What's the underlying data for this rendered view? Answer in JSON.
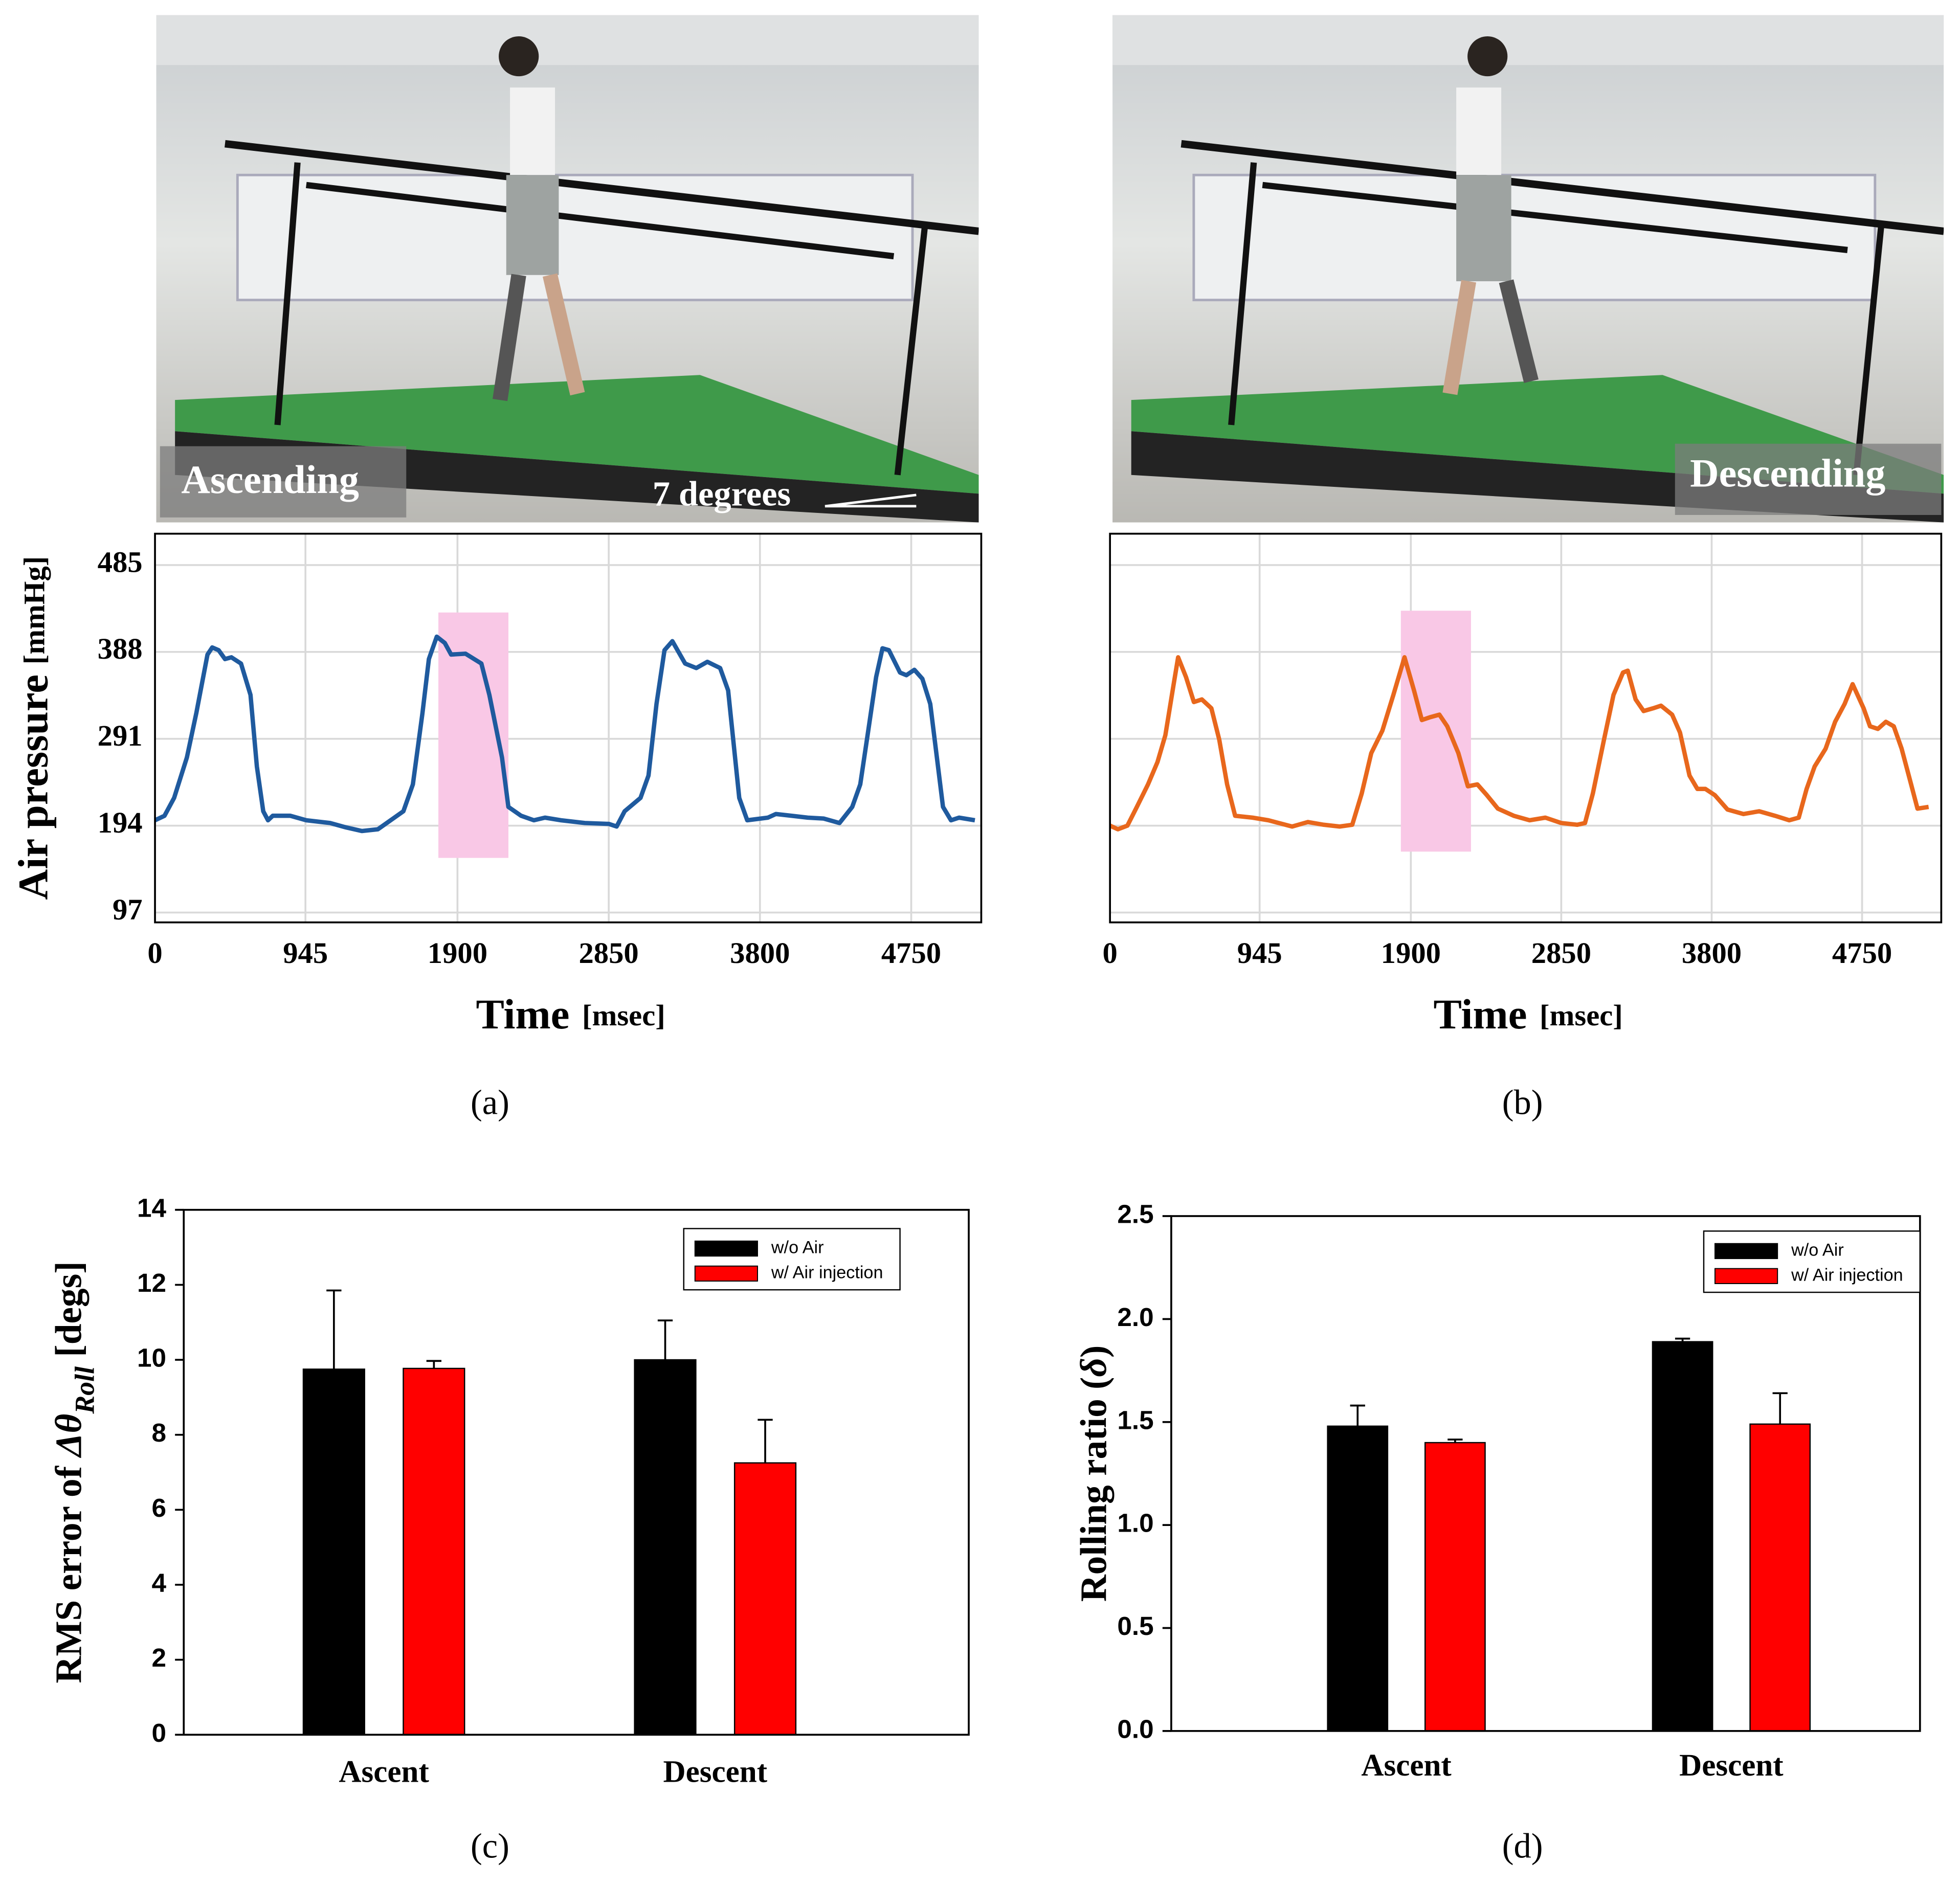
{
  "photos": [
    {
      "label": "Ascending",
      "annotation": "7 degrees"
    },
    {
      "label": "Descending"
    }
  ],
  "panel_labels": [
    "(a)",
    "(b)",
    "(c)",
    "(d)"
  ],
  "chart_data": [
    {
      "type": "line",
      "x_label": "Time",
      "x_unit": "[msec]",
      "y_label": "Air pressure",
      "y_unit": "[mmHg]",
      "x": [
        0,
        60,
        120,
        200,
        260,
        330,
        360,
        400,
        440,
        480,
        540,
        600,
        640,
        680,
        710,
        740,
        850,
        950,
        1100,
        1200,
        1300,
        1400,
        1480,
        1560,
        1620,
        1680,
        1720,
        1770,
        1820,
        1860,
        1950,
        2050,
        2100,
        2180,
        2220,
        2300,
        2380,
        2450,
        2550,
        2700,
        2850,
        2900,
        2950,
        3050,
        3100,
        3150,
        3200,
        3250,
        3330,
        3400,
        3470,
        3550,
        3600,
        3670,
        3720,
        3850,
        3900,
        4000,
        4100,
        4200,
        4300,
        4380,
        4430,
        4480,
        4530,
        4570,
        4610,
        4680,
        4720,
        4770,
        4820,
        4870,
        4950,
        5000,
        5050,
        5150
      ],
      "series": [
        {
          "color": "#1f5a9e",
          "values": [
            200,
            205,
            225,
            270,
            320,
            385,
            393,
            390,
            380,
            382,
            375,
            340,
            260,
            210,
            200,
            205,
            205,
            200,
            197,
            192,
            188,
            190,
            200,
            210,
            240,
            320,
            380,
            405,
            398,
            385,
            386,
            375,
            340,
            270,
            215,
            205,
            200,
            203,
            200,
            197,
            196,
            193,
            210,
            225,
            250,
            330,
            390,
            400,
            375,
            370,
            377,
            370,
            345,
            225,
            200,
            203,
            207,
            205,
            203,
            202,
            197,
            215,
            240,
            300,
            360,
            392,
            390,
            365,
            362,
            368,
            358,
            330,
            215,
            200,
            203,
            200
          ]
        }
      ],
      "xlim": [
        0,
        5190
      ],
      "ylim": [
        86,
        520
      ],
      "xticks": [
        0,
        945,
        1900,
        2850,
        3800,
        4750
      ],
      "yticks": [
        97,
        194,
        291,
        388,
        485
      ],
      "grid": true,
      "highlight": {
        "x": [
          1780,
          2220
        ],
        "y": [
          158,
          432
        ],
        "color": "#f9c8e6"
      }
    },
    {
      "type": "line",
      "x": [
        0,
        50,
        110,
        170,
        240,
        300,
        350,
        400,
        430,
        480,
        530,
        580,
        640,
        690,
        740,
        790,
        900,
        1000,
        1150,
        1250,
        1350,
        1450,
        1530,
        1590,
        1650,
        1720,
        1790,
        1860,
        1920,
        1970,
        2020,
        2080,
        2130,
        2200,
        2260,
        2320,
        2380,
        2450,
        2550,
        2650,
        2750,
        2850,
        2950,
        3000,
        3050,
        3120,
        3180,
        3240,
        3270,
        3320,
        3370,
        3430,
        3480,
        3550,
        3600,
        3660,
        3710,
        3760,
        3820,
        3900,
        4000,
        4100,
        4200,
        4290,
        4350,
        4400,
        4450,
        4520,
        4580,
        4640,
        4690,
        4760,
        4800,
        4850,
        4900,
        4950,
        5000,
        5060,
        5100,
        5170
      ],
      "series": [
        {
          "color": "#e8671c",
          "values": [
            194,
            190,
            194,
            215,
            240,
            265,
            295,
            350,
            382,
            360,
            332,
            335,
            325,
            290,
            240,
            205,
            203,
            200,
            193,
            198,
            195,
            193,
            195,
            230,
            275,
            300,
            340,
            382,
            345,
            312,
            315,
            318,
            305,
            275,
            238,
            240,
            228,
            213,
            205,
            200,
            203,
            197,
            195,
            197,
            230,
            290,
            340,
            365,
            367,
            335,
            322,
            325,
            328,
            318,
            298,
            250,
            235,
            235,
            228,
            212,
            207,
            210,
            205,
            200,
            203,
            235,
            260,
            280,
            310,
            330,
            352,
            325,
            305,
            302,
            310,
            305,
            280,
            240,
            213,
            215
          ]
        }
      ],
      "xlim": [
        0,
        5250
      ],
      "ylim": [
        86,
        520
      ],
      "xticks": [
        0,
        945,
        1900,
        2850,
        3800,
        4750
      ],
      "ygrid": [
        97,
        194,
        291,
        388,
        485
      ],
      "grid": true,
      "x_label": "Time",
      "x_unit": "[msec]",
      "highlight": {
        "x": [
          1837,
          2280
        ],
        "y": [
          165,
          434
        ],
        "color": "#f9c8e6"
      }
    },
    {
      "type": "bar",
      "categories": [
        "Ascent",
        "Descent"
      ],
      "y_label_parts": [
        "RMS error of ",
        "Δθ",
        "Roll",
        " [degs]"
      ],
      "series": [
        {
          "name": "w/o Air",
          "color": "#000000",
          "values": [
            9.75,
            10.0
          ],
          "errors": [
            2.1,
            1.05
          ]
        },
        {
          "name": "w/ Air injection",
          "color": "#ff0000",
          "values": [
            9.77,
            7.25
          ],
          "errors": [
            0.2,
            1.15
          ]
        }
      ],
      "ylim": [
        0,
        14
      ],
      "yticks": [
        0,
        2,
        4,
        6,
        8,
        10,
        12,
        14
      ],
      "legend": "upper right"
    },
    {
      "type": "bar",
      "categories": [
        "Ascent",
        "Descent"
      ],
      "y_label_parts": [
        "Rolling ratio (",
        "δ",
        ")"
      ],
      "series": [
        {
          "name": "w/o Air",
          "color": "#000000",
          "values": [
            1.48,
            1.89
          ],
          "errors": [
            0.1,
            0.015
          ]
        },
        {
          "name": "w/ Air injection",
          "color": "#ff0000",
          "values": [
            1.4,
            1.49
          ],
          "errors": [
            0.015,
            0.15
          ]
        }
      ],
      "ylim": [
        0,
        2.5
      ],
      "yticks": [
        {
          "value": 0,
          "label": "0.0"
        },
        {
          "value": 0.5,
          "label": "0.5"
        },
        {
          "value": 1,
          "label": "1.0"
        },
        {
          "value": 1.5,
          "label": "1.5"
        },
        {
          "value": 2,
          "label": "2.0"
        },
        {
          "value": 2.5,
          "label": "2.5"
        }
      ],
      "legend": "upper right"
    }
  ]
}
